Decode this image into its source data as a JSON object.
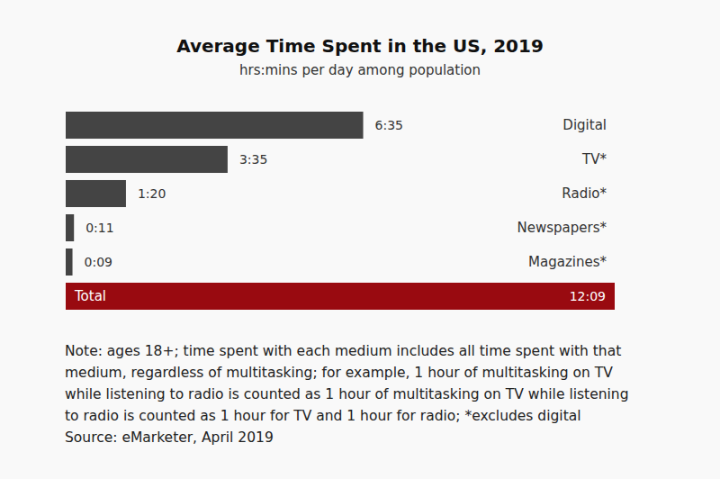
{
  "chart_data": {
    "type": "bar",
    "orientation": "horizontal",
    "title": "Average Time Spent in the US, 2019",
    "subtitle": "hrs:mins per day among population",
    "categories": [
      "Digital",
      "TV*",
      "Radio*",
      "Newspapers*",
      "Magazines*",
      "Total"
    ],
    "values": [
      395,
      215,
      80,
      11,
      9,
      729
    ],
    "value_labels": [
      "6:35",
      "3:35",
      "1:20",
      "0:11",
      "0:09",
      "12:09"
    ],
    "colors": [
      "#444444",
      "#444444",
      "#444444",
      "#444444",
      "#444444",
      "#990a10"
    ],
    "xlim": [
      0,
      729
    ],
    "tick_labels": false,
    "grid": false,
    "data_labels": true,
    "notes": [
      "Note: ages 18+; time spent with each medium includes all time spent with that",
      "medium, regardless of multitasking; for example, 1 hour of multitasking on TV",
      "while listening to radio is counted as 1 hour of multitasking on TV while listening",
      "to radio is counted as 1 hour for TV and 1 hour for radio; *excludes digital"
    ],
    "source": "Source: eMarketer, April 2019"
  }
}
